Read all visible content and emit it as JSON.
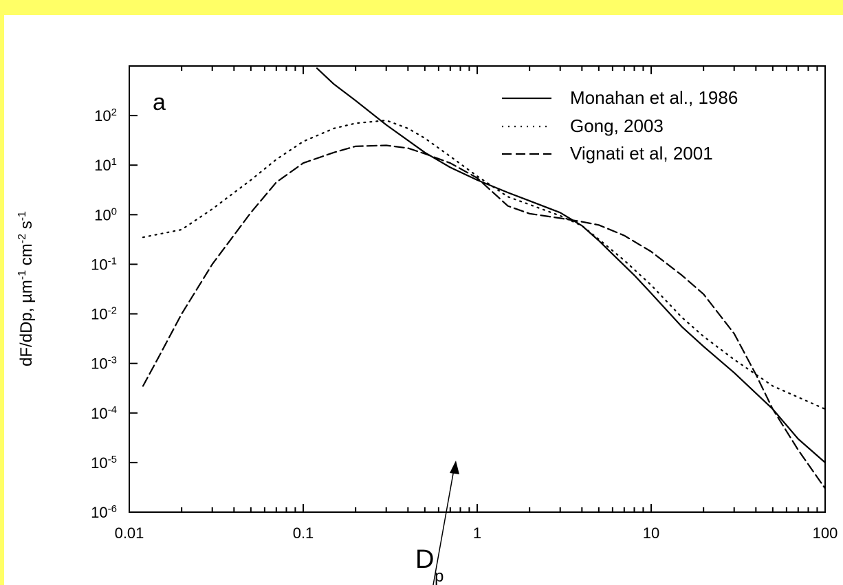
{
  "colors": {
    "background": "#ffff66",
    "panel": "#ffffff",
    "ink": "#000000"
  },
  "chart_data": {
    "type": "line",
    "title": "",
    "panel_label": "a",
    "xlabel": "D",
    "xlabel_sub": "p",
    "ylabel_parts": [
      "dF/dDp, µm",
      "-1",
      " cm",
      "-2",
      " s",
      "-1"
    ],
    "x_scale": "log",
    "y_scale": "log",
    "xlim": [
      0.01,
      100
    ],
    "ylim": [
      1e-06,
      1000
    ],
    "x_tick_labels": [
      "0.01",
      "0.1",
      "1",
      "10",
      "100"
    ],
    "y_tick_labels": [
      {
        "base": "10",
        "exp": "2"
      },
      {
        "base": "10",
        "exp": "1"
      },
      {
        "base": "10",
        "exp": "0"
      },
      {
        "base": "10",
        "exp": "-1"
      },
      {
        "base": "10",
        "exp": "-2"
      },
      {
        "base": "10",
        "exp": "-3"
      },
      {
        "base": "10",
        "exp": "-4"
      },
      {
        "base": "10",
        "exp": "-5"
      },
      {
        "base": "10",
        "exp": "-6"
      }
    ],
    "legend_position": "top-right",
    "grid": false,
    "series": [
      {
        "name": "Monahan et al., 1986",
        "style": "solid",
        "x": [
          0.12,
          0.15,
          0.2,
          0.3,
          0.5,
          0.7,
          1,
          1.5,
          2,
          3,
          4,
          5,
          6,
          8,
          10,
          15,
          20,
          30,
          50,
          70,
          100
        ],
        "y": [
          900,
          430,
          200,
          65,
          18,
          9,
          5,
          2.8,
          1.9,
          1.1,
          0.6,
          0.3,
          0.16,
          0.06,
          0.026,
          0.0055,
          0.0022,
          0.00065,
          0.00012,
          3e-05,
          1e-05
        ]
      },
      {
        "name": "Gong, 2003",
        "style": "dotted",
        "x": [
          0.012,
          0.02,
          0.03,
          0.05,
          0.07,
          0.1,
          0.15,
          0.2,
          0.3,
          0.4,
          0.5,
          0.7,
          1,
          1.5,
          2,
          3,
          4,
          5,
          7,
          10,
          15,
          20,
          30,
          50,
          100
        ],
        "y": [
          0.35,
          0.5,
          1.3,
          5,
          13,
          30,
          55,
          70,
          80,
          55,
          35,
          15,
          6,
          2.3,
          1.6,
          0.95,
          0.6,
          0.32,
          0.12,
          0.038,
          0.0085,
          0.0035,
          0.0012,
          0.00035,
          0.00012
        ]
      },
      {
        "name": "Vignati et al, 2001",
        "style": "dashed",
        "x": [
          0.012,
          0.015,
          0.02,
          0.03,
          0.05,
          0.07,
          0.1,
          0.15,
          0.2,
          0.3,
          0.4,
          0.5,
          0.7,
          1,
          1.5,
          2,
          3,
          4,
          5,
          7,
          10,
          15,
          20,
          30,
          40,
          50,
          70,
          100
        ],
        "y": [
          0.00035,
          0.0015,
          0.01,
          0.1,
          1.1,
          4.5,
          11,
          18,
          24,
          25,
          22,
          17,
          11,
          5.5,
          1.5,
          1.05,
          0.85,
          0.72,
          0.62,
          0.38,
          0.18,
          0.06,
          0.025,
          0.004,
          0.0006,
          0.00012,
          1.8e-05,
          3e-06
        ]
      }
    ]
  }
}
